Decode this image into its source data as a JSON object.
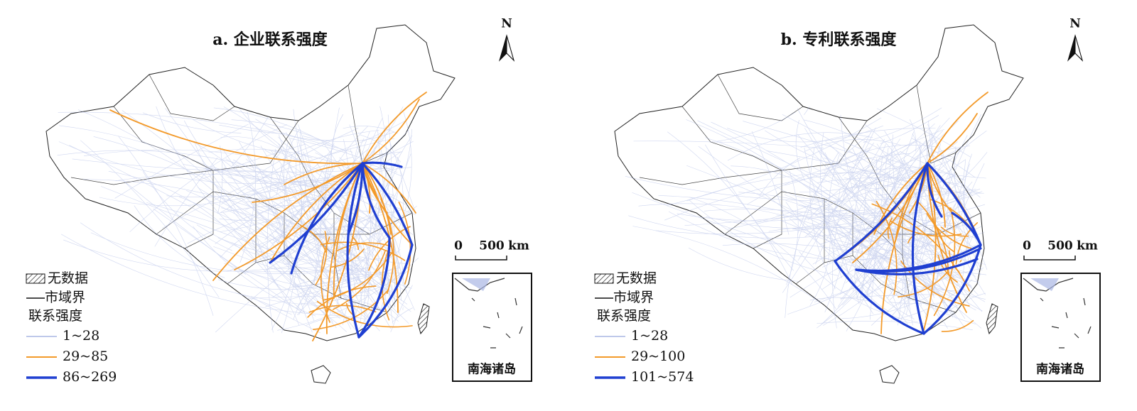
{
  "panels": [
    {
      "title": "a. 企业联系强度",
      "north": "N",
      "scale": {
        "zero": "0",
        "distance": "500",
        "unit": "km"
      },
      "legend": {
        "no_data": "无数据",
        "boundary": "市域界",
        "strength_title": "联系强度",
        "classes": [
          {
            "label": "1~28",
            "color": "#a9b6e4"
          },
          {
            "label": "29~85",
            "color": "#f39a2a"
          },
          {
            "label": "86~269",
            "color": "#1f3fd1"
          }
        ]
      },
      "inset_label": "南海诸岛"
    },
    {
      "title": "b. 专利联系强度",
      "north": "N",
      "scale": {
        "zero": "0",
        "distance": "500",
        "unit": "km"
      },
      "legend": {
        "no_data": "无数据",
        "boundary": "市域界",
        "strength_title": "联系强度",
        "classes": [
          {
            "label": "1~28",
            "color": "#a9b6e4"
          },
          {
            "label": "29~100",
            "color": "#f39a2a"
          },
          {
            "label": "101~574",
            "color": "#1f3fd1"
          }
        ]
      },
      "inset_label": "南海诸岛"
    }
  ]
}
